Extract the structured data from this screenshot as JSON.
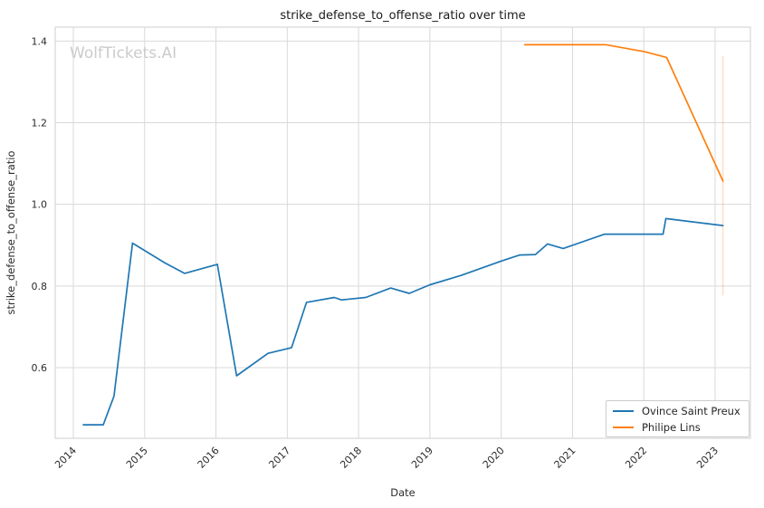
{
  "watermark": "WolfTickets.AI",
  "colors": {
    "series_blue": "#1f77b4",
    "series_orange": "#ff7f0e",
    "grid": "#d9d9d9",
    "spine": "#cfcfcf",
    "text": "#2b2b2b",
    "watermark": "#cbcbcb",
    "legend_border": "#cccccc"
  },
  "legend": {
    "position": "lower right",
    "entries": [
      "Ovince Saint Preux",
      "Philipe Lins"
    ]
  },
  "chart_data": {
    "type": "line",
    "title": "strike_defense_to_offense_ratio over time",
    "xlabel": "Date",
    "ylabel": "strike_defense_to_offense_ratio",
    "grid": true,
    "legend_position": "lower right",
    "xlim": [
      2013.746,
      2023.495
    ],
    "ylim": [
      0.427,
      1.434
    ],
    "x_ticks": [
      2014,
      2015,
      2016,
      2017,
      2018,
      2019,
      2020,
      2021,
      2022,
      2023
    ],
    "y_ticks": [
      0.6,
      0.8,
      1.0,
      1.2,
      1.4
    ],
    "series": [
      {
        "name": "Ovince Saint Preux",
        "color": "#1f77b4",
        "points": [
          [
            2014.14,
            0.46
          ],
          [
            2014.42,
            0.46
          ],
          [
            2014.57,
            0.53
          ],
          [
            2014.83,
            0.905
          ],
          [
            2015.28,
            0.857
          ],
          [
            2015.56,
            0.831
          ],
          [
            2016.02,
            0.853
          ],
          [
            2016.29,
            0.58
          ],
          [
            2016.73,
            0.635
          ],
          [
            2017.06,
            0.649
          ],
          [
            2017.27,
            0.76
          ],
          [
            2017.66,
            0.772
          ],
          [
            2017.76,
            0.766
          ],
          [
            2018.1,
            0.772
          ],
          [
            2018.45,
            0.795
          ],
          [
            2018.71,
            0.782
          ],
          [
            2019.0,
            0.803
          ],
          [
            2019.44,
            0.826
          ],
          [
            2020.0,
            0.861
          ],
          [
            2020.26,
            0.876
          ],
          [
            2020.48,
            0.877
          ],
          [
            2020.65,
            0.903
          ],
          [
            2020.87,
            0.892
          ],
          [
            2021.45,
            0.927
          ],
          [
            2022.27,
            0.927
          ],
          [
            2022.31,
            0.965
          ],
          [
            2023.11,
            0.948
          ]
        ]
      },
      {
        "name": "Philipe Lins",
        "color": "#ff7f0e",
        "points": [
          [
            2020.33,
            1.391
          ],
          [
            2021.47,
            1.391
          ],
          [
            2022.01,
            1.374
          ],
          [
            2022.32,
            1.36
          ],
          [
            2023.11,
            1.057
          ]
        ],
        "error_bar": {
          "x": 2023.11,
          "y_low": 0.777,
          "y_high": 1.363
        }
      }
    ]
  }
}
